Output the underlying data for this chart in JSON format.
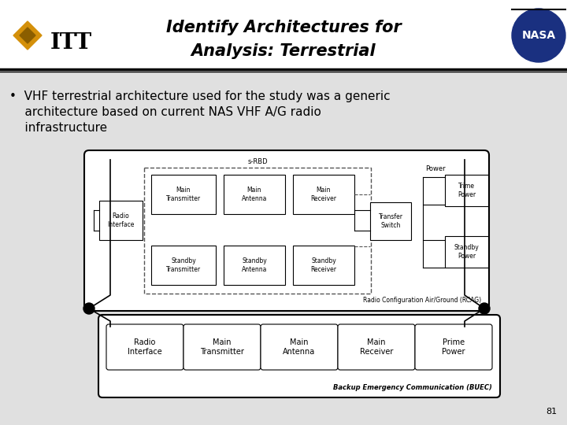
{
  "title_line1": "Identify Architectures for",
  "title_line2": "Analysis: Terrestrial",
  "bullet_text_line1": "•  VHF terrestrial architecture used for the study was a generic",
  "bullet_text_line2": "    architecture based on current NAS VHF A/G radio",
  "bullet_text_line3": "    infrastructure",
  "bg_color": "#e8e8e8",
  "header_bg": "#ffffff",
  "title_color": "#000000",
  "page_number": "81",
  "rcag_label": "Radio Configuration Air/Ground (RCAG)",
  "buec_label": "Backup Emergency Communication (BUEC)",
  "srbd_label": "s-RBD",
  "power_label": "Power",
  "transfer_switch_label": "Transfer\nSwitch",
  "radio_interface_label": "Radio\nInterface",
  "main_transmitter_label": "Main\nTransmitter",
  "main_antenna_label": "Main\nAntenna",
  "main_receiver_label": "Main\nReceiver",
  "standby_transmitter_label": "Standby\nTransmitter",
  "standby_antenna_label": "Standby\nAntenna",
  "standby_receiver_label": "Standby\nReceiver",
  "prime_power_label": "Prime\nPower",
  "trime_power_label": "Trime\nPower",
  "standby_power_label": "Standby\nPower",
  "buec_boxes": [
    "Radio\nInterface",
    "Main\nTransmitter",
    "Main\nAntenna",
    "Main\nReceiver",
    "Prime\nPower"
  ]
}
